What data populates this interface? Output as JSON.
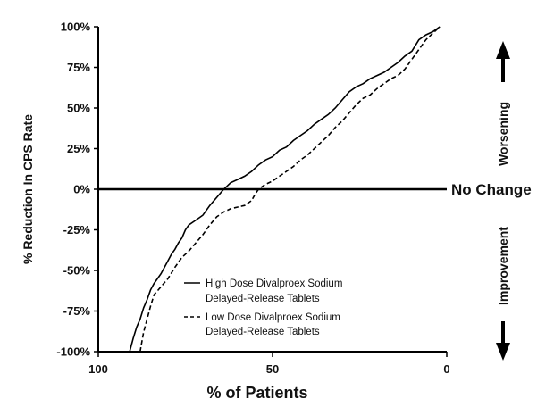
{
  "chart_data": {
    "type": "line",
    "xlabel": "% of Patients",
    "ylabel": "% Reduction In CPS Rate",
    "xlim": [
      100,
      0
    ],
    "ylim": [
      -100,
      100
    ],
    "x_reversed": true,
    "x_ticks": [
      100,
      50,
      0
    ],
    "x_tick_labels": [
      "100",
      "50",
      "0"
    ],
    "y_ticks": [
      100,
      75,
      50,
      25,
      0,
      -25,
      -50,
      -75,
      -100
    ],
    "y_tick_labels": [
      "100%",
      "75%",
      "50%",
      "25%",
      "0%",
      "-25%",
      "-50%",
      "-75%",
      "-100%"
    ],
    "annotations": {
      "zero_line": "No Change",
      "worsening": "Worsening",
      "improvement": "Improvement"
    },
    "series": [
      {
        "name": "High Dose Divalproex Sodium Delayed-Release Tablets",
        "legend_lines": [
          "High Dose Divalproex Sodium",
          "Delayed-Release Tablets"
        ],
        "style": "solid",
        "points": [
          [
            91,
            -100
          ],
          [
            90,
            -92
          ],
          [
            89,
            -85
          ],
          [
            88,
            -80
          ],
          [
            87,
            -73
          ],
          [
            86,
            -68
          ],
          [
            85,
            -62
          ],
          [
            84,
            -58
          ],
          [
            83,
            -55
          ],
          [
            82,
            -52
          ],
          [
            81,
            -48
          ],
          [
            80,
            -44
          ],
          [
            79,
            -40
          ],
          [
            78,
            -37
          ],
          [
            77,
            -33
          ],
          [
            76,
            -30
          ],
          [
            75,
            -25
          ],
          [
            74,
            -22
          ],
          [
            72,
            -19
          ],
          [
            70,
            -16
          ],
          [
            68,
            -10
          ],
          [
            66,
            -5
          ],
          [
            64,
            0
          ],
          [
            62,
            4
          ],
          [
            60,
            6
          ],
          [
            58,
            8
          ],
          [
            56,
            11
          ],
          [
            54,
            15
          ],
          [
            52,
            18
          ],
          [
            50,
            20
          ],
          [
            48,
            24
          ],
          [
            46,
            26
          ],
          [
            44,
            30
          ],
          [
            42,
            33
          ],
          [
            40,
            36
          ],
          [
            38,
            40
          ],
          [
            36,
            43
          ],
          [
            34,
            46
          ],
          [
            32,
            50
          ],
          [
            30,
            55
          ],
          [
            28,
            60
          ],
          [
            26,
            63
          ],
          [
            24,
            65
          ],
          [
            22,
            68
          ],
          [
            20,
            70
          ],
          [
            18,
            72
          ],
          [
            16,
            75
          ],
          [
            14,
            78
          ],
          [
            12,
            82
          ],
          [
            10,
            85
          ],
          [
            8,
            92
          ],
          [
            6,
            95
          ],
          [
            4,
            97
          ],
          [
            2,
            100
          ]
        ]
      },
      {
        "name": "Low Dose Divalproex Sodium Delayed-Release Tablets",
        "legend_lines": [
          "Low Dose Divalproex Sodium",
          "Delayed-Release Tablets"
        ],
        "style": "dashed",
        "points": [
          [
            88,
            -100
          ],
          [
            87,
            -88
          ],
          [
            86,
            -80
          ],
          [
            85,
            -72
          ],
          [
            84,
            -65
          ],
          [
            82,
            -60
          ],
          [
            80,
            -55
          ],
          [
            78,
            -48
          ],
          [
            76,
            -42
          ],
          [
            74,
            -38
          ],
          [
            72,
            -33
          ],
          [
            70,
            -28
          ],
          [
            68,
            -22
          ],
          [
            66,
            -17
          ],
          [
            64,
            -14
          ],
          [
            62,
            -12
          ],
          [
            60,
            -11
          ],
          [
            58,
            -10
          ],
          [
            56,
            -7
          ],
          [
            55,
            -3
          ],
          [
            54,
            0
          ],
          [
            52,
            3
          ],
          [
            50,
            5
          ],
          [
            48,
            8
          ],
          [
            46,
            11
          ],
          [
            44,
            14
          ],
          [
            42,
            18
          ],
          [
            40,
            21
          ],
          [
            38,
            25
          ],
          [
            36,
            29
          ],
          [
            34,
            33
          ],
          [
            32,
            38
          ],
          [
            30,
            42
          ],
          [
            28,
            47
          ],
          [
            26,
            52
          ],
          [
            24,
            56
          ],
          [
            22,
            58
          ],
          [
            20,
            62
          ],
          [
            18,
            65
          ],
          [
            16,
            68
          ],
          [
            14,
            70
          ],
          [
            12,
            74
          ],
          [
            10,
            80
          ],
          [
            8,
            86
          ],
          [
            6,
            92
          ],
          [
            4,
            96
          ],
          [
            2,
            100
          ]
        ]
      }
    ]
  }
}
